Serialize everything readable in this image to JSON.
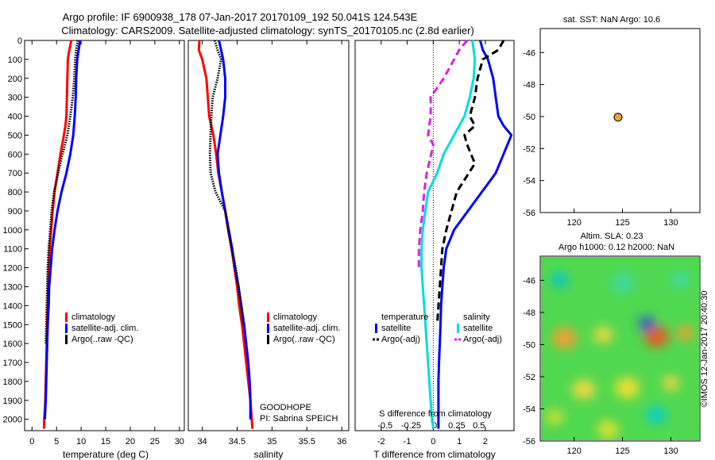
{
  "figure": {
    "title_line1": "Argo profile: IF 6900938_178 07-Jan-2017 20170109_192 50.041S 124.543E",
    "title_line2": "Climatology: CARS2009. Satellite-adjusted climatology: synTS_20170105.nc (2.8d earlier)",
    "watermark": "©IMOS 12-Jan-2017 20:40:30"
  },
  "chart_data": [
    {
      "type": "line",
      "id": "temperature",
      "xlabel": "temperature (deg C)",
      "ylabel": "",
      "xlim": [
        -1.5,
        31
      ],
      "ylim": [
        2060,
        0
      ],
      "xticks": [
        0,
        5,
        10,
        15,
        20,
        25,
        30
      ],
      "yticks": [
        0,
        100,
        200,
        300,
        400,
        500,
        600,
        700,
        800,
        900,
        1000,
        1100,
        1200,
        1300,
        1400,
        1500,
        1600,
        1700,
        1800,
        1900,
        2000
      ],
      "legend": [
        "climatology",
        "satellite-adj. clim.",
        "Argo(..raw -QC)"
      ],
      "series": [
        {
          "name": "climatology",
          "color": "#ff0000",
          "style": "solid",
          "x": [
            8.0,
            7.6,
            7.3,
            7.2,
            7.1,
            7.0,
            6.8,
            6.5,
            5.8,
            5.2,
            4.6,
            4.2,
            3.9,
            3.6,
            3.4,
            3.3,
            3.2,
            3.1,
            3.0,
            2.9,
            2.8,
            2.7,
            2.6,
            2.5,
            2.45
          ],
          "depth": [
            0,
            50,
            100,
            200,
            300,
            400,
            450,
            500,
            600,
            700,
            800,
            900,
            1000,
            1100,
            1200,
            1300,
            1400,
            1500,
            1600,
            1700,
            1800,
            1900,
            1950,
            2000,
            2050
          ]
        },
        {
          "name": "satellite-adj. clim.",
          "color": "#0000ff",
          "style": "solid",
          "x": [
            9.8,
            9.5,
            9.2,
            9.0,
            8.9,
            8.7,
            8.4,
            7.8,
            7.0,
            6.0,
            5.2,
            4.6,
            4.1,
            3.8,
            3.5,
            3.4,
            3.2,
            3.1,
            3.0,
            2.9,
            2.8,
            2.7,
            2.6
          ],
          "depth": [
            0,
            50,
            100,
            200,
            300,
            400,
            500,
            600,
            700,
            800,
            900,
            1000,
            1100,
            1200,
            1300,
            1400,
            1500,
            1600,
            1700,
            1800,
            1900,
            1950,
            2000
          ]
        },
        {
          "name": "Argo(..raw -QC)",
          "color": "#000000",
          "style": "dotted",
          "x": [
            9.3,
            9.0,
            8.8,
            8.6,
            8.3,
            7.8,
            7.2,
            6.2,
            5.3,
            4.5,
            4.0,
            3.7,
            3.4,
            3.2,
            3.1,
            3.0,
            2.9,
            2.8
          ],
          "depth": [
            0,
            50,
            100,
            200,
            300,
            400,
            500,
            600,
            700,
            800,
            900,
            1000,
            1100,
            1200,
            1300,
            1400,
            1500,
            1600
          ]
        }
      ]
    },
    {
      "type": "line",
      "id": "salinity",
      "xlabel": "salinity",
      "xlim": [
        33.8,
        36.1
      ],
      "ylim": [
        2060,
        0
      ],
      "xticks": [
        34,
        34.5,
        35,
        35.5,
        36
      ],
      "legend": [
        "climatology",
        "satellite-adj. clim.",
        "Argo(..raw -QC)"
      ],
      "annotation_line1": "GOODHOPE",
      "annotation_line2": "PI: Sabrina SPEICH",
      "series": [
        {
          "name": "climatology",
          "color": "#ff0000",
          "style": "solid",
          "x": [
            33.96,
            33.95,
            34.0,
            34.06,
            34.08,
            34.1,
            34.16,
            34.2,
            34.23,
            34.28,
            34.33,
            34.37,
            34.42,
            34.46,
            34.5,
            34.53,
            34.57,
            34.6,
            34.63,
            34.66,
            34.69,
            34.71,
            34.72
          ],
          "depth": [
            0,
            50,
            100,
            200,
            300,
            400,
            500,
            600,
            700,
            800,
            900,
            1000,
            1100,
            1200,
            1300,
            1400,
            1500,
            1600,
            1700,
            1800,
            1900,
            2000,
            2050
          ]
        },
        {
          "name": "satellite-adj. clim.",
          "color": "#0000ff",
          "style": "solid",
          "x": [
            34.24,
            34.27,
            34.3,
            34.33,
            34.33,
            34.3,
            34.26,
            34.22,
            34.24,
            34.28,
            34.33,
            34.38,
            34.43,
            34.47,
            34.52,
            34.56,
            34.6,
            34.63,
            34.66,
            34.68,
            34.69,
            34.69
          ],
          "depth": [
            0,
            50,
            100,
            200,
            300,
            400,
            500,
            600,
            700,
            800,
            900,
            1000,
            1100,
            1200,
            1300,
            1400,
            1500,
            1600,
            1700,
            1800,
            1900,
            2000
          ]
        },
        {
          "name": "Argo(..raw -QC)",
          "color": "#000000",
          "style": "dotted",
          "x": [
            34.18,
            34.22,
            34.27,
            34.22,
            34.15,
            34.13,
            34.12,
            34.11,
            34.12,
            34.19,
            34.33,
            34.42,
            34.48,
            34.52,
            34.56,
            34.59
          ],
          "depth": [
            0,
            50,
            100,
            200,
            300,
            400,
            500,
            600,
            700,
            800,
            900,
            1100,
            1200,
            1300,
            1400,
            1500
          ]
        }
      ]
    },
    {
      "type": "line",
      "id": "difference",
      "xlabel": "T difference from climatology",
      "xlabel_top": "S difference from climatology",
      "xlim": [
        -3,
        3.1
      ],
      "ylim": [
        2060,
        0
      ],
      "xticks": [
        -2,
        -1,
        0,
        1,
        2
      ],
      "xticks_s": [
        "-0.5",
        "-0.25",
        "0",
        "0.25",
        "0.5"
      ],
      "legend_left_title": "temperature",
      "legend_right_title": "salinity",
      "legend_items": [
        "satellite",
        "Argo(-adj)",
        "satellite",
        "Argo(-adj)"
      ],
      "series": [
        {
          "name": "temperature satellite",
          "color": "#0000ff",
          "style": "solid",
          "x": [
            1.8,
            1.9,
            2.1,
            2.3,
            2.4,
            2.5,
            2.7,
            3.0,
            2.4,
            1.6,
            0.8,
            0.5,
            0.4,
            0.35,
            0.3,
            0.28,
            0.25,
            0.22,
            0.2,
            0.2,
            0.2,
            0.2
          ],
          "depth": [
            0,
            50,
            100,
            200,
            300,
            400,
            450,
            500,
            700,
            850,
            1000,
            1100,
            1200,
            1300,
            1400,
            1500,
            1600,
            1700,
            1800,
            1900,
            2000,
            2050
          ]
        },
        {
          "name": "temperature Argo(-adj)",
          "color": "#000000",
          "style": "dashed",
          "x": [
            2.7,
            2.5,
            1.9,
            1.7,
            1.6,
            1.4,
            1.6,
            1.2,
            1.3,
            1.6,
            0.9,
            0.5,
            0.35,
            0.3,
            0.25,
            0.2,
            0.15
          ],
          "depth": [
            0,
            50,
            100,
            200,
            300,
            400,
            450,
            500,
            550,
            650,
            800,
            1000,
            1100,
            1200,
            1300,
            1400,
            1500
          ]
        },
        {
          "name": "salinity satellite",
          "color": "#00dddd",
          "style": "solid",
          "x": [
            1.5,
            1.55,
            1.6,
            1.55,
            1.4,
            1.2,
            0.8,
            0.4,
            0.15,
            -0.2,
            -0.4,
            -0.45,
            -0.45,
            -0.4,
            -0.35,
            -0.3,
            -0.25,
            -0.2,
            -0.15,
            -0.1,
            -0.05,
            0.0
          ],
          "depth": [
            0,
            50,
            100,
            200,
            300,
            400,
            500,
            600,
            700,
            800,
            1000,
            1100,
            1200,
            1300,
            1400,
            1500,
            1600,
            1700,
            1800,
            1900,
            2000,
            2050
          ]
        },
        {
          "name": "salinity Argo(-adj)",
          "color": "#e020e0",
          "style": "dashed",
          "x": [
            1.3,
            1.0,
            0.8,
            0.4,
            -0.1,
            -0.1,
            -0.2,
            0.0,
            -0.25,
            -0.35,
            -0.4,
            -0.5,
            -0.55,
            -0.55
          ],
          "depth": [
            0,
            50,
            100,
            200,
            300,
            400,
            500,
            550,
            700,
            800,
            900,
            1000,
            1100,
            1200
          ]
        }
      ]
    },
    {
      "type": "scatter",
      "id": "location-map",
      "title": "sat. SST: NaN Argo: 10.6",
      "xlim": [
        116.5,
        133
      ],
      "ylim": [
        -56,
        -44.5
      ],
      "xticks": [
        120,
        125,
        130
      ],
      "yticks": [
        -46,
        -48,
        -50,
        -52,
        -54,
        -56
      ],
      "points": [
        {
          "x": 124.543,
          "y": -50.041
        }
      ],
      "marker_color": "#f0a030"
    },
    {
      "type": "heatmap",
      "id": "sla-map",
      "title_line1": "Altim. SLA: 0.23",
      "title_line2": "Argo h1000: 0.12 h2000: NaN",
      "xlim": [
        116.5,
        133
      ],
      "ylim": [
        -56,
        -44.5
      ],
      "xticks": [
        120,
        125,
        130
      ],
      "yticks": [
        -46,
        -48,
        -50,
        -52,
        -54,
        -56
      ],
      "blobs": [
        {
          "lon": 118.5,
          "lat": -46.0,
          "r": 0.9,
          "color": "#00c8c8"
        },
        {
          "lon": 125.0,
          "lat": -46.2,
          "r": 1.2,
          "color": "#40d8a0"
        },
        {
          "lon": 131.0,
          "lat": -46.0,
          "r": 1.0,
          "color": "#40d8a0"
        },
        {
          "lon": 119.0,
          "lat": -49.6,
          "r": 1.3,
          "color": "#f0a030"
        },
        {
          "lon": 123.0,
          "lat": -49.4,
          "r": 1.0,
          "color": "#f0d840"
        },
        {
          "lon": 128.5,
          "lat": -49.5,
          "r": 1.3,
          "color": "#e06020"
        },
        {
          "lon": 127.5,
          "lat": -48.7,
          "r": 0.8,
          "color": "#2040e0"
        },
        {
          "lon": 131.5,
          "lat": -49.3,
          "r": 0.9,
          "color": "#f0a030"
        },
        {
          "lon": 121.0,
          "lat": -52.8,
          "r": 1.2,
          "color": "#f0d840"
        },
        {
          "lon": 125.5,
          "lat": -52.7,
          "r": 1.3,
          "color": "#e8e030"
        },
        {
          "lon": 130.0,
          "lat": -52.4,
          "r": 0.9,
          "color": "#f0d840"
        },
        {
          "lon": 118.0,
          "lat": -54.5,
          "r": 0.9,
          "color": "#d8e030"
        },
        {
          "lon": 123.5,
          "lat": -55.3,
          "r": 1.1,
          "color": "#e0e030"
        },
        {
          "lon": 128.5,
          "lat": -54.4,
          "r": 1.0,
          "color": "#00d0d0"
        }
      ]
    }
  ]
}
